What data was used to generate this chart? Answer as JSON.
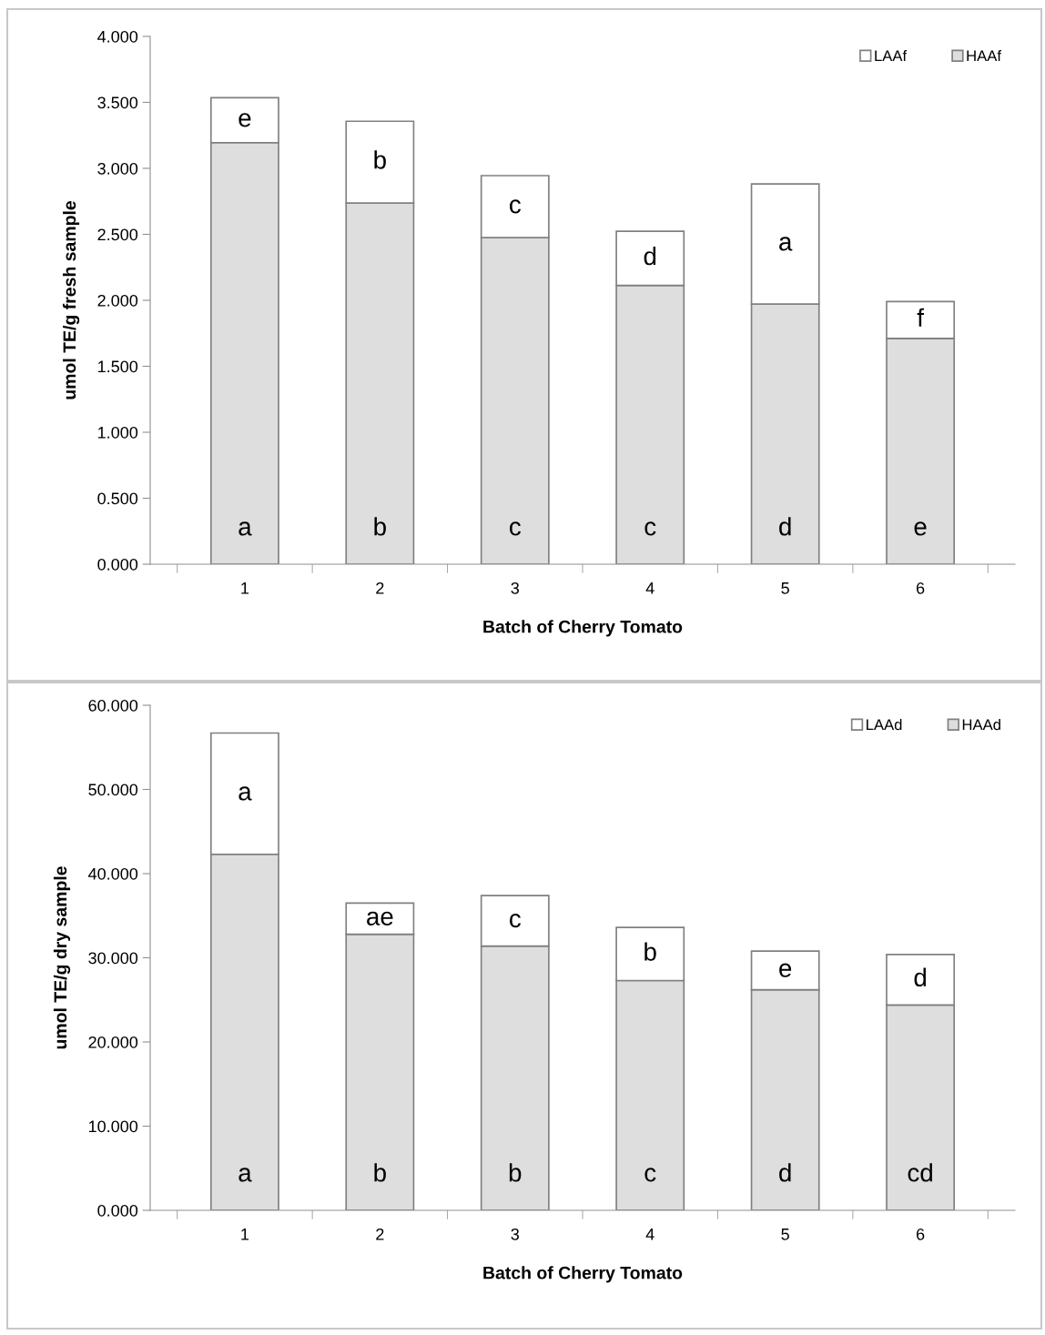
{
  "chart_data": [
    {
      "type": "bar",
      "stacked": true,
      "categories": [
        "1",
        "2",
        "3",
        "4",
        "5",
        "6"
      ],
      "series": [
        {
          "name": "HAAf",
          "color": "#dedede",
          "values": [
            3.195,
            2.737,
            2.475,
            2.113,
            1.972,
            1.711
          ]
        },
        {
          "name": "LAAf",
          "color": "#ffffff",
          "values": [
            0.34,
            0.62,
            0.47,
            0.41,
            0.91,
            0.28
          ]
        }
      ],
      "xlabel": "Batch of Cherry Tomato",
      "ylabel": "umol TE/g fresh sample",
      "ylim": [
        0,
        4
      ],
      "yticks": [
        {
          "value": 0,
          "label": "0.000"
        },
        {
          "value": 0.5,
          "label": "0.500"
        },
        {
          "value": 1,
          "label": "1.000"
        },
        {
          "value": 1.5,
          "label": "1.500"
        },
        {
          "value": 2,
          "label": "2.000"
        },
        {
          "value": 2.5,
          "label": "2.500"
        },
        {
          "value": 3,
          "label": "3.000"
        },
        {
          "value": 3.5,
          "label": "3.500"
        },
        {
          "value": 4,
          "label": "4.000"
        }
      ],
      "legend": "top right",
      "grid": false,
      "annotations": [
        "a",
        "b",
        "c",
        "c",
        "d",
        "e",
        "e",
        "b",
        "c",
        "d",
        "a",
        "f"
      ]
    },
    {
      "type": "bar",
      "stacked": true,
      "categories": [
        "1",
        "2",
        "3",
        "4",
        "5",
        "6"
      ],
      "series": [
        {
          "name": "HAAd",
          "color": "#dedede",
          "values": [
            42.3,
            32.8,
            31.4,
            27.3,
            26.2,
            24.4
          ]
        },
        {
          "name": "LAAd",
          "color": "#ffffff",
          "values": [
            14.4,
            3.7,
            6.0,
            6.3,
            4.6,
            6.0
          ]
        }
      ],
      "xlabel": "Batch of Cherry Tomato",
      "ylabel": "umol TE/g dry sample",
      "ylim": [
        0,
        60
      ],
      "yticks": [
        {
          "value": 0,
          "label": "0.000"
        },
        {
          "value": 10,
          "label": "10.000"
        },
        {
          "value": 20,
          "label": "20.000"
        },
        {
          "value": 30,
          "label": "30.000"
        },
        {
          "value": 40,
          "label": "40.000"
        },
        {
          "value": 50,
          "label": "50.000"
        },
        {
          "value": 60,
          "label": "60.000"
        }
      ],
      "legend": "top right",
      "grid": false,
      "annotations": [
        "a",
        "b",
        "b",
        "c",
        "d",
        "cd",
        "a",
        "ae",
        "c",
        "b",
        "e",
        "d"
      ]
    }
  ]
}
